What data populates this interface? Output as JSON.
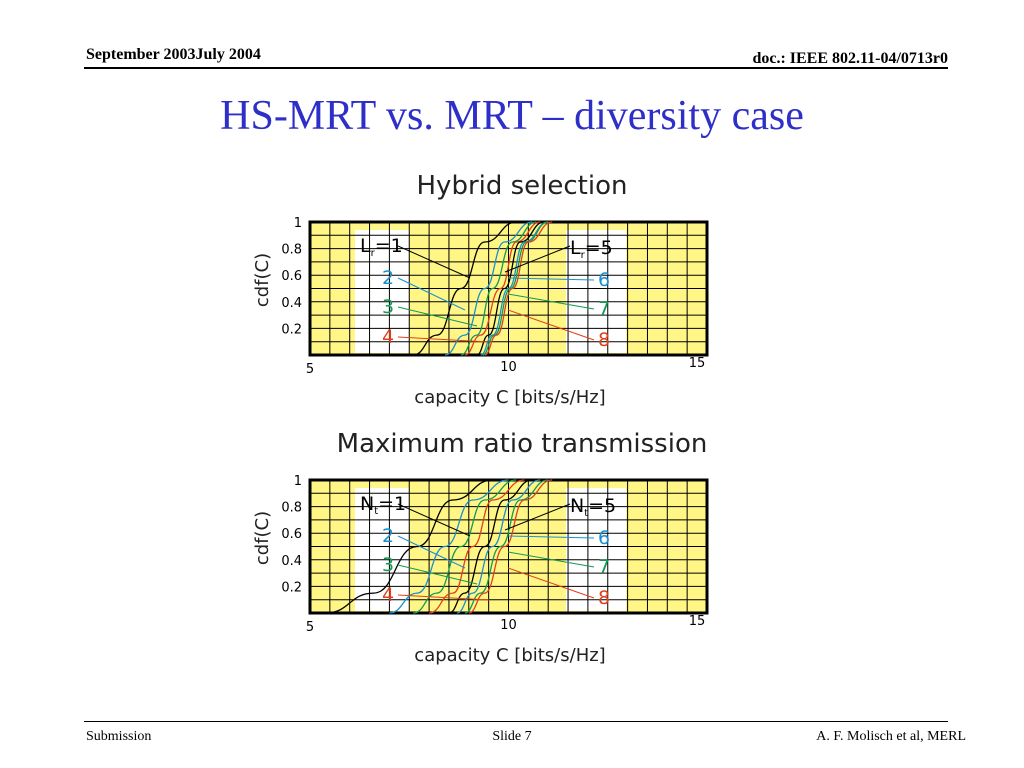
{
  "header": {
    "date": "September 2003July 2004",
    "doc": "doc.: IEEE 802.11-04/0713r0"
  },
  "slide_title": "HS-MRT vs. MRT – diversity case",
  "footer": {
    "left": "Submission",
    "center": "Slide 7",
    "right": "A. F. Molisch et al, MERL"
  },
  "colors": {
    "title": "#2e2ec8",
    "plot_bg": "#fff685",
    "grid": "#000000",
    "label_1_5": "#000000",
    "label_2_6": "#1a8fcf",
    "label_3_7": "#119a55",
    "label_4_8": "#e0401a"
  },
  "chart_data": [
    {
      "type": "line",
      "title": "Hybrid selection",
      "xlabel": "capacity C [bits/s/Hz]",
      "ylabel": "cdf(C)",
      "xlim": [
        5,
        15
      ],
      "ylim": [
        0,
        1
      ],
      "x_ticks": [
        "5",
        "10",
        "15"
      ],
      "y_ticks": [
        "1",
        "0.8",
        "0.6",
        "0.4",
        "0.2"
      ],
      "grid": true,
      "annotations": {
        "left": {
          "base": "L",
          "sub": "r",
          "eq": "=1",
          "others": [
            "2",
            "3",
            "4"
          ]
        },
        "right": {
          "base": "L",
          "sub": "r",
          "eq": "=5",
          "others": [
            "6",
            "7",
            "8"
          ]
        }
      },
      "series": [
        {
          "label": "1",
          "color": "#000000",
          "points": [
            [
              7.6,
              0
            ],
            [
              8.2,
              0.15
            ],
            [
              8.8,
              0.5
            ],
            [
              9.4,
              0.85
            ],
            [
              10.2,
              1
            ]
          ]
        },
        {
          "label": "2",
          "color": "#1a8fcf",
          "points": [
            [
              8.4,
              0
            ],
            [
              8.9,
              0.15
            ],
            [
              9.4,
              0.5
            ],
            [
              9.9,
              0.85
            ],
            [
              10.6,
              1
            ]
          ]
        },
        {
          "label": "3",
          "color": "#119a55",
          "points": [
            [
              8.8,
              0
            ],
            [
              9.2,
              0.15
            ],
            [
              9.6,
              0.5
            ],
            [
              10.1,
              0.85
            ],
            [
              10.7,
              1
            ]
          ]
        },
        {
          "label": "4",
          "color": "#e0401a",
          "points": [
            [
              8.9,
              0
            ],
            [
              9.3,
              0.15
            ],
            [
              9.8,
              0.5
            ],
            [
              10.2,
              0.85
            ],
            [
              10.8,
              1
            ]
          ]
        },
        {
          "label": "5",
          "color": "#000000",
          "points": [
            [
              9.2,
              0
            ],
            [
              9.5,
              0.15
            ],
            [
              9.9,
              0.5
            ],
            [
              10.3,
              0.85
            ],
            [
              10.9,
              1
            ]
          ]
        },
        {
          "label": "6",
          "color": "#1a8fcf",
          "points": [
            [
              9.3,
              0
            ],
            [
              9.6,
              0.15
            ],
            [
              10.0,
              0.5
            ],
            [
              10.4,
              0.85
            ],
            [
              11.0,
              1
            ]
          ]
        },
        {
          "label": "7",
          "color": "#119a55",
          "points": [
            [
              9.35,
              0
            ],
            [
              9.65,
              0.15
            ],
            [
              10.05,
              0.5
            ],
            [
              10.45,
              0.85
            ],
            [
              11.0,
              1
            ]
          ]
        },
        {
          "label": "8",
          "color": "#e0401a",
          "points": [
            [
              9.4,
              0
            ],
            [
              9.7,
              0.15
            ],
            [
              10.1,
              0.5
            ],
            [
              10.5,
              0.85
            ],
            [
              11.1,
              1
            ]
          ]
        }
      ]
    },
    {
      "type": "line",
      "title": "Maximum ratio transmission",
      "xlabel": "capacity C [bits/s/Hz]",
      "ylabel": "cdf(C)",
      "xlim": [
        5,
        15
      ],
      "ylim": [
        0,
        1
      ],
      "x_ticks": [
        "5",
        "10",
        "15"
      ],
      "y_ticks": [
        "1",
        "0.8",
        "0.6",
        "0.4",
        "0.2"
      ],
      "grid": true,
      "annotations": {
        "left": {
          "base": "N",
          "sub": "t",
          "eq": "=1",
          "others": [
            "2",
            "3",
            "4"
          ]
        },
        "right": {
          "base": "N",
          "sub": "t",
          "eq": "=5",
          "others": [
            "6",
            "7",
            "8"
          ]
        }
      },
      "series": [
        {
          "label": "1",
          "color": "#000000",
          "points": [
            [
              5.4,
              0
            ],
            [
              6.6,
              0.15
            ],
            [
              7.7,
              0.5
            ],
            [
              8.6,
              0.85
            ],
            [
              9.6,
              1
            ]
          ]
        },
        {
          "label": "2",
          "color": "#1a8fcf",
          "points": [
            [
              7.0,
              0
            ],
            [
              7.7,
              0.15
            ],
            [
              8.4,
              0.5
            ],
            [
              9.1,
              0.85
            ],
            [
              10.0,
              1
            ]
          ]
        },
        {
          "label": "3",
          "color": "#119a55",
          "points": [
            [
              7.6,
              0
            ],
            [
              8.2,
              0.15
            ],
            [
              8.8,
              0.5
            ],
            [
              9.4,
              0.85
            ],
            [
              10.2,
              1
            ]
          ]
        },
        {
          "label": "4",
          "color": "#e0401a",
          "points": [
            [
              8.0,
              0
            ],
            [
              8.6,
              0.15
            ],
            [
              9.1,
              0.5
            ],
            [
              9.6,
              0.85
            ],
            [
              10.4,
              1
            ]
          ]
        },
        {
          "label": "5",
          "color": "#000000",
          "points": [
            [
              8.5,
              0
            ],
            [
              8.9,
              0.15
            ],
            [
              9.4,
              0.5
            ],
            [
              9.9,
              0.85
            ],
            [
              10.6,
              1
            ]
          ]
        },
        {
          "label": "6",
          "color": "#1a8fcf",
          "points": [
            [
              8.7,
              0
            ],
            [
              9.1,
              0.15
            ],
            [
              9.6,
              0.5
            ],
            [
              10.1,
              0.85
            ],
            [
              10.8,
              1
            ]
          ]
        },
        {
          "label": "7",
          "color": "#119a55",
          "points": [
            [
              8.9,
              0
            ],
            [
              9.3,
              0.15
            ],
            [
              9.8,
              0.5
            ],
            [
              10.3,
              0.85
            ],
            [
              11.0,
              1
            ]
          ]
        },
        {
          "label": "8",
          "color": "#e0401a",
          "points": [
            [
              9.0,
              0
            ],
            [
              9.4,
              0.15
            ],
            [
              9.9,
              0.5
            ],
            [
              10.4,
              0.85
            ],
            [
              11.1,
              1
            ]
          ]
        }
      ]
    }
  ]
}
